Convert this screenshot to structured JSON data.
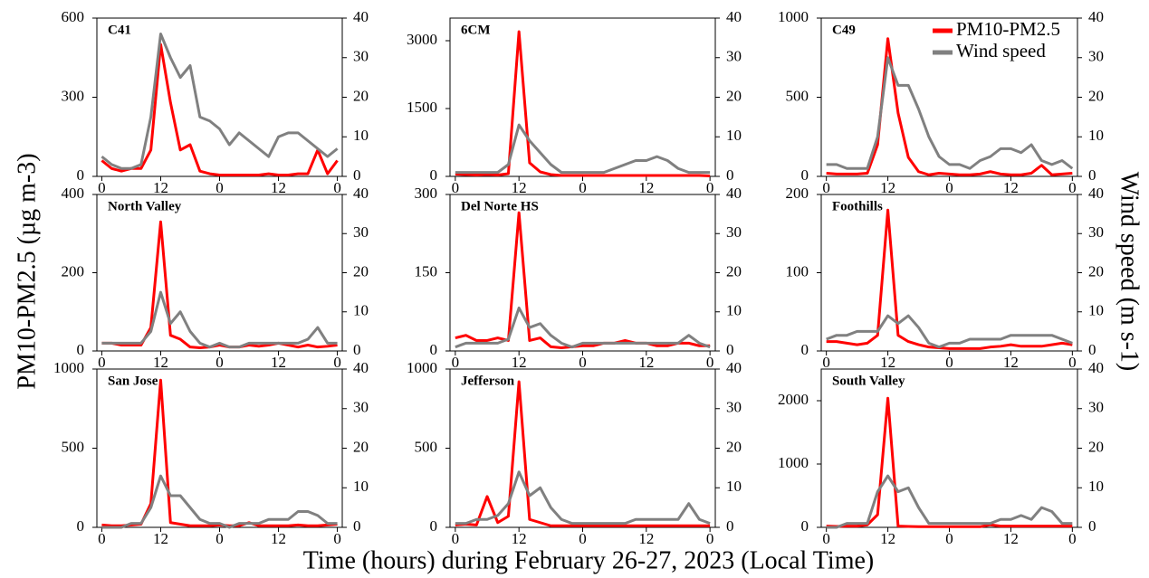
{
  "x_label": "Time (hours) during February 26-27, 2023 (Local Time)",
  "y_label": "PM10-PM2.5 (µg m-3)",
  "y2_label": "Wind speed (m s-1)",
  "chart_data": [
    {
      "type": "line",
      "title": "C41",
      "x": [
        0,
        2,
        4,
        6,
        8,
        10,
        12,
        14,
        16,
        18,
        20,
        22,
        24,
        26,
        28,
        30,
        32,
        34,
        36,
        38,
        40,
        42,
        44,
        46,
        48
      ],
      "series": [
        {
          "name": "PM10-PM2.5",
          "color": "#ff0000",
          "values": [
            60,
            30,
            20,
            30,
            30,
            100,
            500,
            280,
            100,
            120,
            20,
            10,
            5,
            5,
            5,
            5,
            5,
            10,
            5,
            5,
            10,
            10,
            100,
            10,
            60
          ]
        },
        {
          "name": "Wind speed",
          "color": "#808080",
          "axis": "y2",
          "values": [
            5,
            3,
            2,
            2,
            3,
            15,
            36,
            30,
            25,
            28,
            15,
            14,
            12,
            8,
            11,
            9,
            7,
            5,
            10,
            11,
            11,
            9,
            7,
            5,
            7
          ]
        }
      ],
      "xlim": [
        -1,
        49
      ],
      "xticks": [
        0,
        12,
        {
          "value": 24,
          "label": "0"
        },
        {
          "value": 36,
          "label": "12"
        },
        {
          "value": 48,
          "label": "0"
        }
      ],
      "ylim": [
        0,
        600
      ],
      "yticks": [
        0,
        300,
        600
      ],
      "y2lim": [
        0,
        40
      ],
      "y2ticks": [
        0,
        10,
        20,
        30,
        40
      ]
    },
    {
      "type": "line",
      "title": "6CM",
      "x": [
        0,
        2,
        4,
        6,
        8,
        10,
        12,
        14,
        16,
        18,
        20,
        22,
        24,
        26,
        28,
        30,
        32,
        34,
        36,
        38,
        40,
        42,
        44,
        46,
        48
      ],
      "series": [
        {
          "name": "PM10-PM2.5",
          "color": "#ff0000",
          "values": [
            50,
            40,
            30,
            40,
            30,
            60,
            3200,
            300,
            100,
            40,
            20,
            20,
            20,
            20,
            20,
            20,
            20,
            20,
            20,
            20,
            20,
            20,
            20,
            20,
            10
          ]
        },
        {
          "name": "Wind speed",
          "color": "#808080",
          "axis": "y2",
          "values": [
            1,
            1,
            1,
            1,
            1,
            3,
            13,
            9,
            6,
            3,
            1,
            1,
            1,
            1,
            1,
            2,
            3,
            4,
            4,
            5,
            4,
            2,
            1,
            1,
            1
          ]
        }
      ],
      "xlim": [
        -1,
        49
      ],
      "xticks": [
        0,
        12,
        {
          "value": 24,
          "label": "0"
        },
        {
          "value": 36,
          "label": "12"
        },
        {
          "value": 48,
          "label": "0"
        }
      ],
      "ylim": [
        0,
        3500
      ],
      "yticks": [
        0,
        1500,
        3000
      ],
      "y2lim": [
        0,
        40
      ],
      "y2ticks": [
        0,
        10,
        20,
        30,
        40
      ]
    },
    {
      "type": "line",
      "title": "C49",
      "legend": "upper right",
      "x": [
        0,
        2,
        4,
        6,
        8,
        10,
        12,
        14,
        16,
        18,
        20,
        22,
        24,
        26,
        28,
        30,
        32,
        34,
        36,
        38,
        40,
        42,
        44,
        46,
        48
      ],
      "series": [
        {
          "name": "PM10-PM2.5",
          "color": "#ff0000",
          "values": [
            20,
            15,
            15,
            15,
            20,
            200,
            870,
            400,
            120,
            30,
            10,
            20,
            15,
            10,
            10,
            15,
            30,
            15,
            10,
            10,
            20,
            70,
            10,
            15,
            20
          ]
        },
        {
          "name": "Wind speed",
          "color": "#808080",
          "axis": "y2",
          "values": [
            3,
            3,
            2,
            2,
            2,
            10,
            30,
            23,
            23,
            17,
            10,
            5,
            3,
            3,
            2,
            4,
            5,
            7,
            7,
            6,
            8,
            4,
            3,
            4,
            2
          ]
        }
      ],
      "xlim": [
        -1,
        49
      ],
      "xticks": [
        0,
        12,
        {
          "value": 24,
          "label": "0"
        },
        {
          "value": 36,
          "label": "12"
        },
        {
          "value": 48,
          "label": "0"
        }
      ],
      "ylim": [
        0,
        1000
      ],
      "yticks": [
        0,
        500,
        1000
      ],
      "y2lim": [
        0,
        40
      ],
      "y2ticks": [
        0,
        10,
        20,
        30,
        40
      ]
    },
    {
      "type": "line",
      "title": "North Valley",
      "x": [
        0,
        2,
        4,
        6,
        8,
        10,
        12,
        14,
        16,
        18,
        20,
        22,
        24,
        26,
        28,
        30,
        32,
        34,
        36,
        38,
        40,
        42,
        44,
        46,
        48
      ],
      "series": [
        {
          "name": "PM10-PM2.5",
          "color": "#ff0000",
          "values": [
            20,
            20,
            15,
            15,
            15,
            60,
            330,
            40,
            30,
            10,
            8,
            10,
            15,
            10,
            10,
            15,
            12,
            15,
            20,
            15,
            10,
            15,
            10,
            12,
            15
          ]
        },
        {
          "name": "Wind speed",
          "color": "#808080",
          "axis": "y2",
          "values": [
            2,
            2,
            2,
            2,
            2,
            5,
            15,
            7,
            10,
            5,
            2,
            1,
            2,
            1,
            1,
            2,
            2,
            2,
            2,
            2,
            2,
            3,
            6,
            2,
            2
          ]
        }
      ],
      "xlim": [
        -1,
        49
      ],
      "xticks": [
        0,
        12,
        {
          "value": 24,
          "label": "0"
        },
        {
          "value": 36,
          "label": "12"
        },
        {
          "value": 48,
          "label": "0"
        }
      ],
      "ylim": [
        0,
        400
      ],
      "yticks": [
        0,
        200,
        400
      ],
      "y2lim": [
        0,
        40
      ],
      "y2ticks": [
        0,
        10,
        20,
        30,
        40
      ]
    },
    {
      "type": "line",
      "title": "Del Norte HS",
      "x": [
        0,
        2,
        4,
        6,
        8,
        10,
        12,
        14,
        16,
        18,
        20,
        22,
        24,
        26,
        28,
        30,
        32,
        34,
        36,
        38,
        40,
        42,
        44,
        46,
        48
      ],
      "series": [
        {
          "name": "PM10-PM2.5",
          "color": "#ff0000",
          "values": [
            25,
            30,
            20,
            20,
            25,
            20,
            265,
            20,
            25,
            8,
            6,
            8,
            10,
            10,
            15,
            15,
            20,
            15,
            15,
            10,
            10,
            15,
            15,
            10,
            10
          ]
        },
        {
          "name": "Wind speed",
          "color": "#808080",
          "axis": "y2",
          "values": [
            1,
            2,
            2,
            2,
            2,
            3,
            11,
            6,
            7,
            4,
            2,
            1,
            2,
            2,
            2,
            2,
            2,
            2,
            2,
            2,
            2,
            2,
            4,
            2,
            1
          ]
        }
      ],
      "xlim": [
        -1,
        49
      ],
      "xticks": [
        0,
        12,
        {
          "value": 24,
          "label": "0"
        },
        {
          "value": 36,
          "label": "12"
        },
        {
          "value": 48,
          "label": "0"
        }
      ],
      "ylim": [
        0,
        300
      ],
      "yticks": [
        0,
        150,
        300
      ],
      "y2lim": [
        0,
        40
      ],
      "y2ticks": [
        0,
        10,
        20,
        30,
        40
      ]
    },
    {
      "type": "line",
      "title": "Foothills",
      "x": [
        0,
        2,
        4,
        6,
        8,
        10,
        12,
        14,
        16,
        18,
        20,
        22,
        24,
        26,
        28,
        30,
        32,
        34,
        36,
        38,
        40,
        42,
        44,
        46,
        48
      ],
      "series": [
        {
          "name": "PM10-PM2.5",
          "color": "#ff0000",
          "values": [
            12,
            12,
            10,
            8,
            10,
            20,
            180,
            20,
            12,
            8,
            5,
            4,
            3,
            3,
            3,
            3,
            5,
            6,
            8,
            6,
            6,
            6,
            8,
            10,
            8
          ]
        },
        {
          "name": "Wind speed",
          "color": "#808080",
          "axis": "y2",
          "values": [
            3,
            4,
            4,
            5,
            5,
            5,
            9,
            7,
            9,
            6,
            2,
            1,
            2,
            2,
            3,
            3,
            3,
            3,
            4,
            4,
            4,
            4,
            4,
            3,
            2
          ]
        }
      ],
      "xlim": [
        -1,
        49
      ],
      "xticks": [
        0,
        12,
        {
          "value": 24,
          "label": "0"
        },
        {
          "value": 36,
          "label": "12"
        },
        {
          "value": 48,
          "label": "0"
        }
      ],
      "ylim": [
        0,
        200
      ],
      "yticks": [
        0,
        100,
        200
      ],
      "y2lim": [
        0,
        40
      ],
      "y2ticks": [
        0,
        10,
        20,
        30,
        40
      ]
    },
    {
      "type": "line",
      "title": "San Jose",
      "x": [
        0,
        2,
        4,
        6,
        8,
        10,
        12,
        14,
        16,
        18,
        20,
        22,
        24,
        26,
        28,
        30,
        32,
        34,
        36,
        38,
        40,
        42,
        44,
        46,
        48
      ],
      "series": [
        {
          "name": "PM10-PM2.5",
          "color": "#ff0000",
          "values": [
            15,
            10,
            10,
            15,
            20,
            150,
            930,
            30,
            20,
            10,
            10,
            10,
            15,
            10,
            10,
            30,
            10,
            10,
            10,
            10,
            15,
            10,
            10,
            15,
            20
          ]
        },
        {
          "name": "Wind speed",
          "color": "#808080",
          "axis": "y2",
          "values": [
            0,
            0,
            0,
            1,
            1,
            5,
            13,
            8,
            8,
            5,
            2,
            1,
            1,
            0,
            1,
            1,
            1,
            2,
            2,
            2,
            4,
            4,
            3,
            1,
            1
          ]
        }
      ],
      "xlim": [
        -1,
        49
      ],
      "xticks": [
        0,
        12,
        {
          "value": 24,
          "label": "0"
        },
        {
          "value": 36,
          "label": "12"
        },
        {
          "value": 48,
          "label": "0"
        }
      ],
      "ylim": [
        0,
        1000
      ],
      "yticks": [
        0,
        500,
        1000
      ],
      "y2lim": [
        0,
        40
      ],
      "y2ticks": [
        0,
        10,
        20,
        30,
        40
      ]
    },
    {
      "type": "line",
      "title": "Jefferson",
      "x": [
        0,
        2,
        4,
        6,
        8,
        10,
        12,
        14,
        16,
        18,
        20,
        22,
        24,
        26,
        28,
        30,
        32,
        34,
        36,
        38,
        40,
        42,
        44,
        46,
        48
      ],
      "series": [
        {
          "name": "PM10-PM2.5",
          "color": "#ff0000",
          "values": [
            15,
            20,
            15,
            195,
            30,
            70,
            920,
            50,
            30,
            10,
            10,
            10,
            10,
            10,
            10,
            10,
            10,
            10,
            10,
            10,
            10,
            10,
            10,
            10,
            10
          ]
        },
        {
          "name": "Wind speed",
          "color": "#808080",
          "axis": "y2",
          "values": [
            1,
            1,
            2,
            2,
            3,
            6,
            14,
            8,
            10,
            5,
            2,
            1,
            1,
            1,
            1,
            1,
            1,
            2,
            2,
            2,
            2,
            2,
            6,
            2,
            1
          ]
        }
      ],
      "xlim": [
        -1,
        49
      ],
      "xticks": [
        0,
        12,
        {
          "value": 24,
          "label": "0"
        },
        {
          "value": 36,
          "label": "12"
        },
        {
          "value": 48,
          "label": "0"
        }
      ],
      "ylim": [
        0,
        1000
      ],
      "yticks": [
        0,
        500,
        1000
      ],
      "y2lim": [
        0,
        40
      ],
      "y2ticks": [
        0,
        10,
        20,
        30,
        40
      ]
    },
    {
      "type": "line",
      "title": "South Valley",
      "x": [
        0,
        2,
        4,
        6,
        8,
        10,
        12,
        14,
        16,
        18,
        20,
        22,
        24,
        26,
        28,
        30,
        32,
        34,
        36,
        38,
        40,
        42,
        44,
        46,
        48
      ],
      "series": [
        {
          "name": "PM10-PM2.5",
          "color": "#ff0000",
          "values": [
            20,
            15,
            20,
            20,
            40,
            200,
            2040,
            20,
            15,
            10,
            10,
            10,
            10,
            10,
            10,
            10,
            40,
            20,
            20,
            20,
            20,
            20,
            20,
            20,
            20
          ]
        },
        {
          "name": "Wind speed",
          "color": "#808080",
          "axis": "y2",
          "values": [
            0,
            0,
            1,
            1,
            1,
            9,
            13,
            9,
            10,
            5,
            1,
            1,
            1,
            1,
            1,
            1,
            1,
            2,
            2,
            3,
            2,
            5,
            4,
            1,
            1
          ]
        }
      ],
      "xlim": [
        -1,
        49
      ],
      "xticks": [
        0,
        12,
        {
          "value": 24,
          "label": "0"
        },
        {
          "value": 36,
          "label": "12"
        },
        {
          "value": 48,
          "label": "0"
        }
      ],
      "ylim": [
        0,
        2500
      ],
      "yticks": [
        0,
        1000,
        2000
      ],
      "y2lim": [
        0,
        40
      ],
      "y2ticks": [
        0,
        10,
        20,
        30,
        40
      ]
    }
  ]
}
